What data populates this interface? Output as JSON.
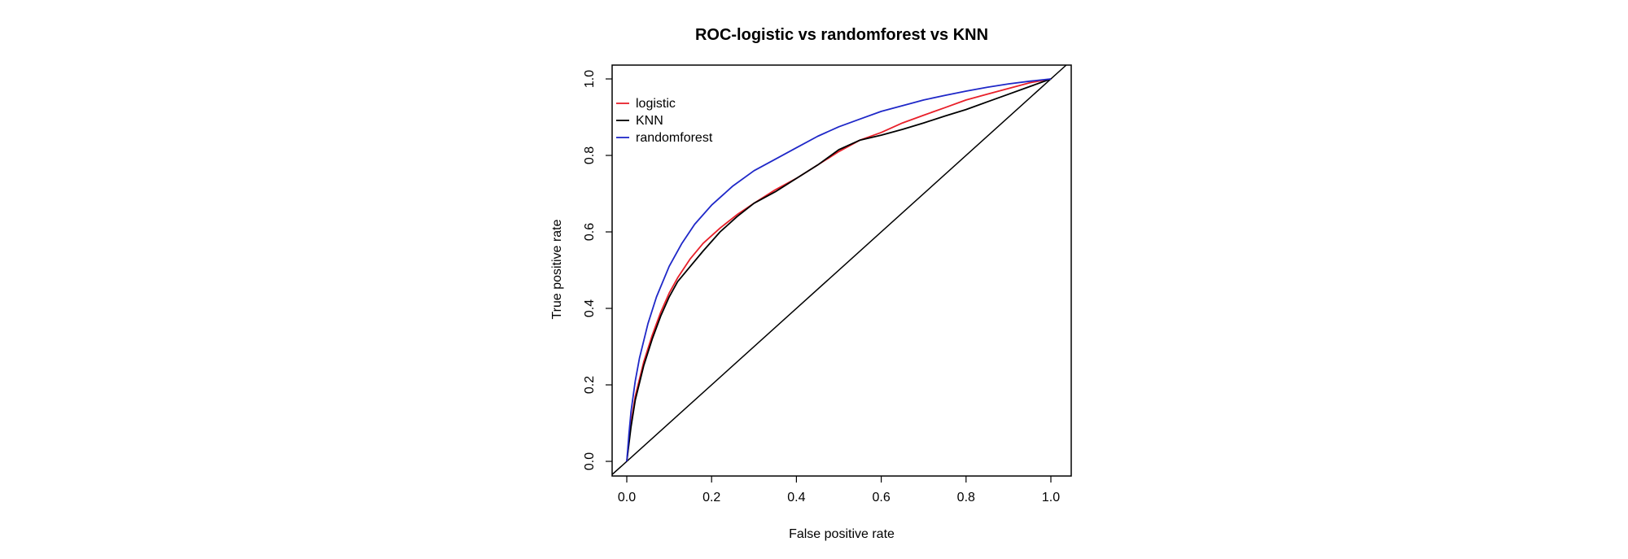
{
  "chart_data": {
    "type": "line",
    "title": "ROC-logistic vs randomforest vs KNN",
    "xlabel": "False positive rate",
    "ylabel": "True positive rate",
    "xlim": [
      0,
      1
    ],
    "ylim": [
      0,
      1
    ],
    "xticks": [
      "0.0",
      "0.2",
      "0.4",
      "0.6",
      "0.8",
      "1.0"
    ],
    "yticks": [
      "0.0",
      "0.2",
      "0.4",
      "0.6",
      "0.8",
      "1.0"
    ],
    "grid": false,
    "legend_position": "top-left",
    "diagonal_reference": true,
    "series": [
      {
        "name": "logistic",
        "color": "#e8202a",
        "x": [
          0,
          0.01,
          0.02,
          0.04,
          0.06,
          0.08,
          0.1,
          0.12,
          0.15,
          0.18,
          0.22,
          0.26,
          0.3,
          0.35,
          0.4,
          0.45,
          0.5,
          0.55,
          0.6,
          0.65,
          0.7,
          0.75,
          0.8,
          0.85,
          0.9,
          0.95,
          1.0
        ],
        "y": [
          0,
          0.1,
          0.17,
          0.26,
          0.33,
          0.39,
          0.44,
          0.48,
          0.53,
          0.57,
          0.61,
          0.645,
          0.675,
          0.71,
          0.74,
          0.775,
          0.81,
          0.84,
          0.86,
          0.885,
          0.905,
          0.925,
          0.945,
          0.96,
          0.975,
          0.99,
          1.0
        ]
      },
      {
        "name": "KNN",
        "color": "#000000",
        "x": [
          0,
          0.01,
          0.02,
          0.04,
          0.06,
          0.08,
          0.1,
          0.12,
          0.15,
          0.18,
          0.22,
          0.26,
          0.3,
          0.35,
          0.4,
          0.45,
          0.5,
          0.55,
          0.6,
          0.65,
          0.7,
          0.75,
          0.8,
          0.85,
          0.9,
          0.95,
          1.0
        ],
        "y": [
          0,
          0.09,
          0.16,
          0.25,
          0.32,
          0.38,
          0.43,
          0.47,
          0.51,
          0.55,
          0.6,
          0.64,
          0.675,
          0.705,
          0.74,
          0.775,
          0.815,
          0.84,
          0.853,
          0.868,
          0.885,
          0.903,
          0.92,
          0.94,
          0.96,
          0.98,
          1.0
        ]
      },
      {
        "name": "randomforest",
        "color": "#1f28c8",
        "x": [
          0,
          0.005,
          0.01,
          0.02,
          0.03,
          0.05,
          0.07,
          0.1,
          0.13,
          0.16,
          0.2,
          0.25,
          0.3,
          0.35,
          0.4,
          0.45,
          0.5,
          0.55,
          0.6,
          0.65,
          0.7,
          0.75,
          0.8,
          0.85,
          0.9,
          0.95,
          1.0
        ],
        "y": [
          0,
          0.07,
          0.13,
          0.21,
          0.27,
          0.36,
          0.43,
          0.51,
          0.57,
          0.62,
          0.67,
          0.72,
          0.76,
          0.79,
          0.82,
          0.85,
          0.875,
          0.895,
          0.915,
          0.93,
          0.945,
          0.957,
          0.968,
          0.978,
          0.987,
          0.994,
          1.0
        ]
      }
    ]
  }
}
